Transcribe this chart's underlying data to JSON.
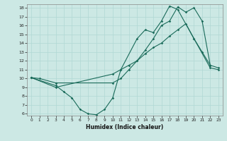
{
  "xlabel": "Humidex (Indice chaleur)",
  "bg_color": "#cce8e4",
  "line_color": "#1a6b5a",
  "grid_color": "#b0d8d4",
  "xlim": [
    -0.5,
    23.5
  ],
  "ylim": [
    5.8,
    18.4
  ],
  "yticks": [
    6,
    7,
    8,
    9,
    10,
    11,
    12,
    13,
    14,
    15,
    16,
    17,
    18
  ],
  "xticks": [
    0,
    1,
    2,
    3,
    4,
    5,
    6,
    7,
    8,
    9,
    10,
    11,
    12,
    13,
    14,
    15,
    16,
    17,
    18,
    19,
    20,
    21,
    22,
    23
  ],
  "line1_x": [
    0,
    1,
    3,
    10,
    11,
    12,
    13,
    14,
    15,
    16,
    17,
    18,
    19,
    20,
    21,
    22,
    23
  ],
  "line1_y": [
    10.1,
    10.0,
    9.5,
    9.5,
    10.0,
    11.0,
    12.0,
    13.2,
    14.5,
    16.0,
    16.5,
    18.1,
    17.5,
    18.0,
    16.5,
    11.5,
    11.2
  ],
  "line2_x": [
    0,
    3,
    4,
    5,
    6,
    7,
    8,
    9,
    10,
    11,
    13,
    14,
    15,
    16,
    17,
    18,
    20,
    21,
    22
  ],
  "line2_y": [
    10.1,
    9.2,
    8.5,
    7.8,
    6.5,
    6.0,
    5.9,
    6.5,
    7.8,
    11.0,
    14.5,
    15.5,
    15.2,
    16.5,
    18.2,
    17.8,
    14.5,
    13.0,
    11.5
  ],
  "line3_x": [
    0,
    3,
    10,
    11,
    12,
    13,
    14,
    15,
    16,
    17,
    18,
    19,
    20,
    22,
    23
  ],
  "line3_y": [
    10.1,
    9.0,
    10.5,
    11.0,
    11.5,
    12.0,
    12.8,
    13.5,
    14.0,
    14.8,
    15.5,
    16.2,
    14.5,
    11.2,
    11.0
  ]
}
